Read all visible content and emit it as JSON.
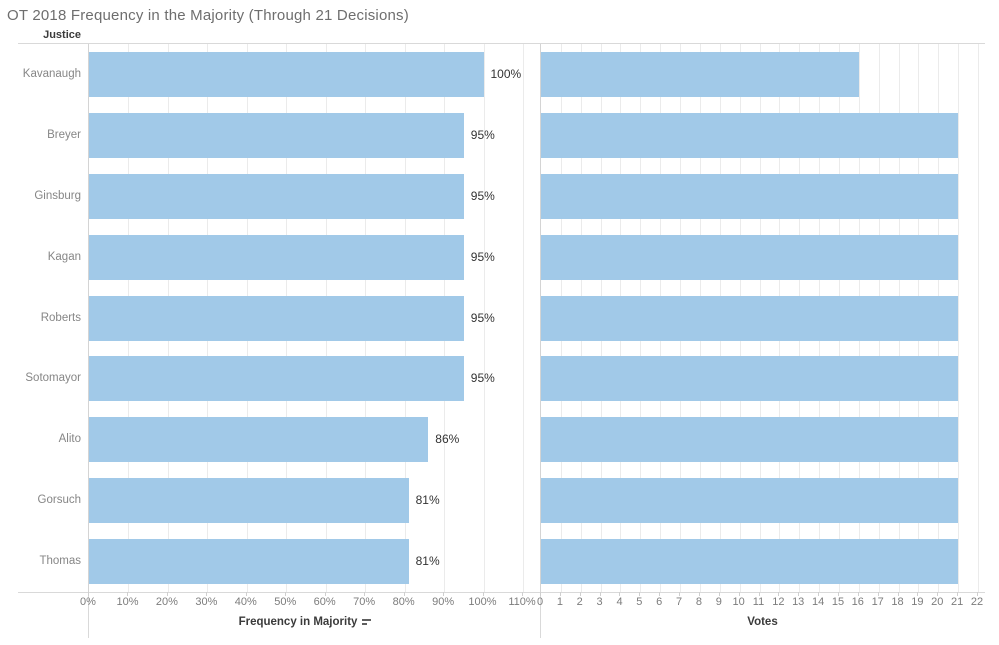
{
  "title": "OT 2018 Frequency in the Majority (Through 21 Decisions)",
  "row_header_label": "Justice",
  "colors": {
    "bar": "#a1c9e8",
    "gridline": "#ebebeb",
    "axis_line": "#d4d4d4",
    "title_text": "#6e6e6e",
    "category_text": "#868686",
    "value_text": "#333333",
    "tick_text": "#7c7c7c",
    "header_text": "#3b3b3b"
  },
  "chart_data": {
    "type": "bar",
    "orientation": "horizontal",
    "title": "OT 2018 Frequency in the Majority (Through 21 Decisions)",
    "row_dimension": "Justice",
    "categories": [
      "Kavanaugh",
      "Breyer",
      "Ginsburg",
      "Kagan",
      "Roberts",
      "Sotomayor",
      "Alito",
      "Gorsuch",
      "Thomas"
    ],
    "grid": true,
    "legend": false,
    "series": [
      {
        "name": "Frequency in Majority",
        "axis_title": "Frequency in Majority",
        "sorted": "descending",
        "values": [
          100,
          95,
          95,
          95,
          95,
          95,
          86,
          81,
          81
        ],
        "value_labels": [
          "100%",
          "95%",
          "95%",
          "95%",
          "95%",
          "95%",
          "86%",
          "81%",
          "81%"
        ],
        "xlim": [
          0,
          110
        ],
        "tick_step": 10,
        "tick_labels": [
          "0%",
          "10%",
          "20%",
          "30%",
          "40%",
          "50%",
          "60%",
          "70%",
          "80%",
          "90%",
          "100%",
          "110%"
        ]
      },
      {
        "name": "Votes",
        "axis_title": "Votes",
        "values": [
          16,
          21,
          21,
          21,
          21,
          21,
          21,
          21,
          21
        ],
        "value_labels": [],
        "xlim": [
          0,
          22
        ],
        "tick_step": 1,
        "tick_labels": [
          "0",
          "1",
          "2",
          "3",
          "4",
          "5",
          "6",
          "7",
          "8",
          "9",
          "10",
          "11",
          "12",
          "13",
          "14",
          "15",
          "16",
          "17",
          "18",
          "19",
          "20",
          "21",
          "22"
        ]
      }
    ]
  }
}
